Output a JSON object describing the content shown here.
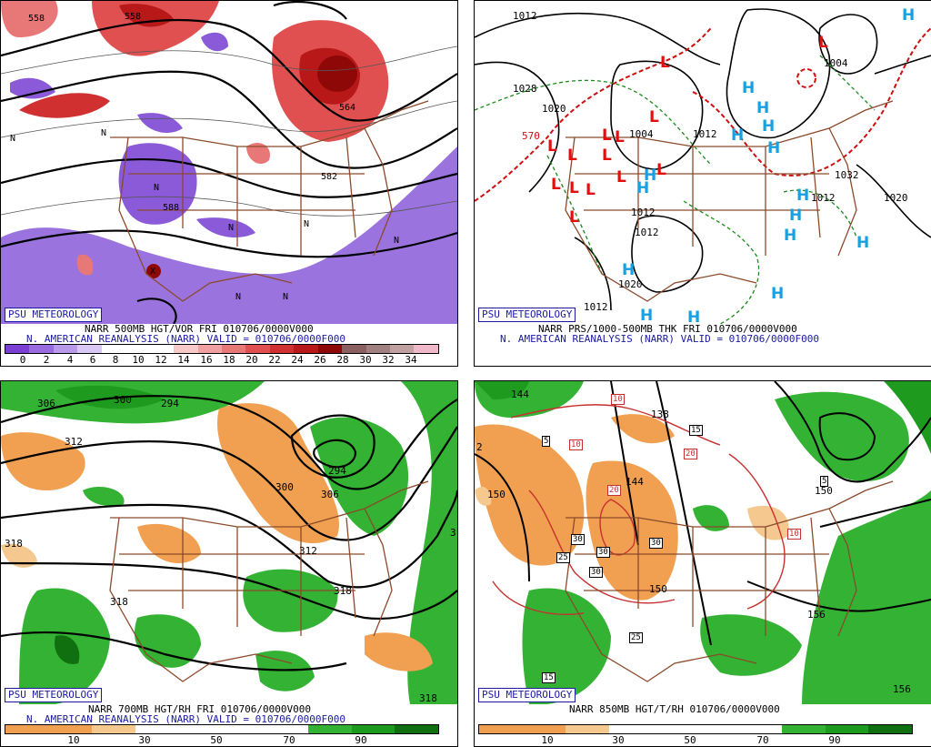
{
  "panels": [
    {
      "id": "vor",
      "badge": "PSU METEOROLOGY",
      "line1": "NARR 500MB HGT/VOR FRI 010706/0000V000",
      "line2": "N. AMERICAN REANALYSIS (NARR) VALID = 010706/0000F000",
      "scale_ticks": [
        "0",
        "2",
        "4",
        "6",
        "8",
        "10",
        "12",
        "14",
        "16",
        "18",
        "20",
        "22",
        "24",
        "26",
        "28",
        "30",
        "32",
        "34"
      ],
      "scale_colors": [
        "#7b3fd6",
        "#9a6ae0",
        "#b99aea",
        "#d8c8f3",
        "#ffffff",
        "#ffffff",
        "#ffffff",
        "#f7c9c9",
        "#f0a0a0",
        "#e87878",
        "#e05050",
        "#d03030",
        "#b81818",
        "#8f0808",
        "#8a6060",
        "#a08080",
        "#c0a0a0",
        "#f0b8c8"
      ],
      "contour_labels": [
        "558",
        "558",
        "582",
        "564",
        "588"
      ],
      "vort_marks": [
        "N",
        "N",
        "N",
        "N",
        "N",
        "N",
        "N",
        "N",
        "X"
      ]
    },
    {
      "id": "prs",
      "badge": "PSU METEOROLOGY",
      "line1": "NARR PRS/1000-500MB THK FRI 010706/0000V000",
      "line2": "N. AMERICAN REANALYSIS (NARR) VALID = 010706/0000F000",
      "isobar_labels": [
        "1012",
        "1028",
        "1020",
        "1004",
        "1012",
        "1012",
        "1012",
        "1020",
        "1012",
        "1020",
        "1032",
        "1012",
        "1004",
        "570"
      ],
      "lows": [
        "L",
        "L",
        "L",
        "L",
        "L",
        "L",
        "L",
        "L",
        "L",
        "L",
        "L",
        "L",
        "L",
        "L"
      ],
      "highs": [
        "H",
        "H",
        "H",
        "H",
        "H",
        "H",
        "H",
        "H",
        "H",
        "H",
        "H",
        "H",
        "H",
        "H",
        "H",
        "H"
      ]
    },
    {
      "id": "rh700",
      "badge": "PSU METEOROLOGY",
      "line1": "NARR 700MB HGT/RH FRI 010706/0000V000",
      "line2": "N. AMERICAN REANALYSIS (NARR) VALID = 010706/0000F000",
      "scale_ticks": [
        "10",
        "30",
        "50",
        "70",
        "90"
      ],
      "scale_colors": [
        "#f0a050",
        "#f0a050",
        "#f5c890",
        "#ffffff",
        "#ffffff",
        "#ffffff",
        "#ffffff",
        "#33b233",
        "#1e9a1e",
        "#107010"
      ],
      "contour_labels": [
        "306",
        "300",
        "294",
        "312",
        "318",
        "318",
        "300",
        "306",
        "294",
        "312",
        "318",
        "318",
        "3"
      ]
    },
    {
      "id": "rh850",
      "badge": "PSU METEOROLOGY",
      "line1": "NARR 850MB HGT/T/RH 010706/0000V000",
      "line2": "",
      "scale_ticks": [
        "10",
        "30",
        "50",
        "70",
        "90"
      ],
      "scale_colors": [
        "#f0a050",
        "#f0a050",
        "#f5c890",
        "#ffffff",
        "#ffffff",
        "#ffffff",
        "#ffffff",
        "#33b233",
        "#1e9a1e",
        "#107010"
      ],
      "contour_labels": [
        "144",
        "138",
        "144",
        "150",
        "150",
        "156",
        "156",
        "150",
        "156",
        "2"
      ],
      "temp_labels": [
        "10",
        "10",
        "15",
        "20",
        "20",
        "5",
        "30",
        "30",
        "30",
        "30",
        "25",
        "25",
        "10",
        "5",
        "15"
      ]
    }
  ]
}
